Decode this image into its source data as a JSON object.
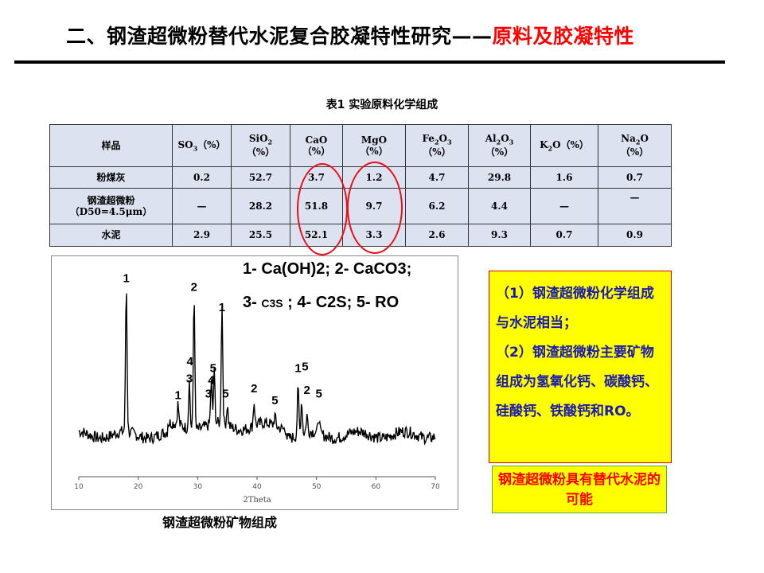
{
  "slide": {
    "title_main": "二、钢渣超微粉替代水泥复合胶凝特性研究——",
    "title_highlight": "原料及胶凝特性"
  },
  "table": {
    "caption": "表1  实验原料化学组成",
    "headers": {
      "sample": "样品",
      "so3": "SO3（%）",
      "sio2": "SiO2（%）",
      "cao": "CaO（%）",
      "mgo": "MgO（%）",
      "fe2o3": "Fe2O3（%）",
      "al2o3": "Al2O3（%）",
      "k2o": "K2O（%）",
      "na2o": "Na2O（%）"
    },
    "rows": [
      {
        "sample": "粉煤灰",
        "sample_sub": "",
        "values": [
          "0.2",
          "52.7",
          "3.7",
          "1.2",
          "4.7",
          "29.8",
          "1.6",
          "0.7"
        ]
      },
      {
        "sample": "钢渣超微粉",
        "sample_sub": "（D50=4.5μm）",
        "values": [
          "—",
          "28.2",
          "51.8",
          "9.7",
          "6.2",
          "4.4",
          "—",
          "—"
        ]
      },
      {
        "sample": "水泥",
        "sample_sub": "",
        "values": [
          "2.9",
          "25.5",
          "52.1",
          "3.3",
          "2.6",
          "9.3",
          "0.7",
          "0.9"
        ]
      }
    ]
  },
  "xrd": {
    "legend_line1": "1- Ca(OH)2; 2- CaCO3;",
    "legend_line2_a": "3- ",
    "legend_line2_b": "C3S",
    "legend_line2_c": " ; 4- C2S; 5- RO",
    "x_axis_label": "2Theta",
    "x_ticks": [
      "10",
      "20",
      "30",
      "40",
      "50",
      "60",
      "70"
    ],
    "caption": "钢渣超微粉矿物组成",
    "peak_labels": [
      {
        "t": "1",
        "x2": 18.0,
        "h": 0.95
      },
      {
        "t": "2",
        "x2": 29.4,
        "h": 0.9
      },
      {
        "t": "1",
        "x2": 34.1,
        "h": 0.78
      },
      {
        "t": "4",
        "x2": 28.7,
        "h": 0.46
      },
      {
        "t": "5",
        "x2": 32.6,
        "h": 0.42
      },
      {
        "t": "3",
        "x2": 28.6,
        "h": 0.36
      },
      {
        "t": "4",
        "x2": 32.3,
        "h": 0.35
      },
      {
        "t": "1",
        "x2": 26.7,
        "h": 0.26
      },
      {
        "t": "3",
        "x2": 31.8,
        "h": 0.27
      },
      {
        "t": "5",
        "x2": 34.7,
        "h": 0.27
      },
      {
        "t": "2",
        "x2": 39.5,
        "h": 0.3
      },
      {
        "t": "5",
        "x2": 43.0,
        "h": 0.23
      },
      {
        "t": "1",
        "x2": 46.9,
        "h": 0.42
      },
      {
        "t": "5",
        "x2": 48.1,
        "h": 0.43
      },
      {
        "t": "2",
        "x2": 48.4,
        "h": 0.29
      },
      {
        "t": "5",
        "x2": 50.4,
        "h": 0.27
      }
    ]
  },
  "notes": {
    "items": [
      "（1）钢渣超微粉化学组成与水泥相当；",
      "（2）钢渣超微粉主要矿物组成为氢氧化钙、碳酸钙、硅酸钙、铁酸钙和RO。"
    ],
    "conclusion": "钢渣超微粉具有替代水泥的可能"
  },
  "colors": {
    "accent_red": "#ff0000",
    "highlight_yellow": "#ffff00",
    "note_text": "#1a1ab0",
    "table_bg": "#dde2f0"
  }
}
